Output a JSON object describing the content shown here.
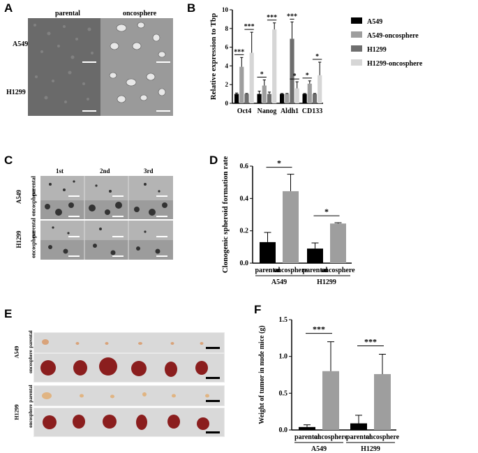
{
  "panels": {
    "A": {
      "label": "A",
      "col_headers": [
        "parental",
        "oncosphere"
      ],
      "row_labels": [
        "A549",
        "H1299"
      ]
    },
    "B": {
      "label": "B",
      "ylabel": "Relative expression to Tbp",
      "legend": [
        "A549",
        "A549-oncosphere",
        "H1299",
        "H1299-oncosphere"
      ],
      "colors": [
        "#000000",
        "#9e9e9e",
        "#6e6e6e",
        "#d6d6d6"
      ],
      "sig": [
        "***",
        "***",
        "*",
        "***",
        "***",
        "*",
        "*",
        "*"
      ]
    },
    "C": {
      "label": "C",
      "col_headers": [
        "1st",
        "2nd",
        "3rd"
      ],
      "group_labels": [
        "A549",
        "H1299"
      ],
      "row_labels": [
        "parental",
        "oncosphere",
        "parental",
        "oncosphere"
      ]
    },
    "D": {
      "label": "D",
      "ylabel": "Clonogenic spheroid formation rate",
      "sig": [
        "*",
        "*"
      ]
    },
    "E": {
      "label": "E",
      "group_labels": [
        "A549",
        "H1299"
      ],
      "row_labels": [
        "parental",
        "oncosphere",
        "parental",
        "oncosphere"
      ]
    },
    "F": {
      "label": "F",
      "ylabel": "Weight of tumor in nude mice (g)",
      "sig": [
        "***",
        "***"
      ]
    }
  },
  "chart_data": [
    {
      "panel": "B",
      "type": "bar",
      "categories": [
        "Oct4",
        "Nanog",
        "Aldh1",
        "CD133"
      ],
      "ylim": [
        0,
        10
      ],
      "yticks": [
        0,
        2,
        4,
        6,
        8,
        10
      ],
      "ylabel": "Relative expression to Tbp",
      "series": [
        {
          "name": "A549",
          "values": [
            1.0,
            1.0,
            1.0,
            1.0
          ],
          "errors": [
            0.1,
            0.3,
            0.05,
            0.05
          ]
        },
        {
          "name": "A549-oncosphere",
          "values": [
            3.9,
            1.9,
            1.0,
            2.1
          ],
          "errors": [
            1.0,
            0.6,
            0.05,
            0.3
          ]
        },
        {
          "name": "H1299",
          "values": [
            1.0,
            1.0,
            6.9,
            1.0
          ],
          "errors": [
            0.05,
            0.2,
            1.8,
            0.05
          ]
        },
        {
          "name": "H1299-oncosphere",
          "values": [
            5.4,
            7.9,
            1.6,
            3.0
          ],
          "errors": [
            2.2,
            0.7,
            0.7,
            1.4
          ]
        }
      ]
    },
    {
      "panel": "D",
      "type": "bar",
      "categories": [
        "parental",
        "oncosphere",
        "parental",
        "oncosphere"
      ],
      "groups": [
        "A549",
        "H1299"
      ],
      "values": [
        0.13,
        0.445,
        0.09,
        0.245
      ],
      "errors": [
        0.06,
        0.105,
        0.035,
        0.005
      ],
      "colors": [
        "#000000",
        "#9e9e9e",
        "#000000",
        "#9e9e9e"
      ],
      "ylim": [
        0,
        0.6
      ],
      "yticks": [
        "0.0",
        "0.2",
        "0.4",
        "0.6"
      ],
      "ylabel": "Clonogenic spheroid formation rate"
    },
    {
      "panel": "F",
      "type": "bar",
      "categories": [
        "parental",
        "oncosphere",
        "parental",
        "oncosphere"
      ],
      "groups": [
        "A549",
        "H1299"
      ],
      "values": [
        0.04,
        0.8,
        0.09,
        0.76
      ],
      "errors": [
        0.03,
        0.4,
        0.11,
        0.27
      ],
      "colors": [
        "#000000",
        "#9e9e9e",
        "#000000",
        "#9e9e9e"
      ],
      "ylim": [
        0,
        1.5
      ],
      "yticks": [
        "0.0",
        "0.5",
        "1.0",
        "1.5"
      ],
      "ylabel": "Weight of tumor in nude mice (g)"
    }
  ]
}
